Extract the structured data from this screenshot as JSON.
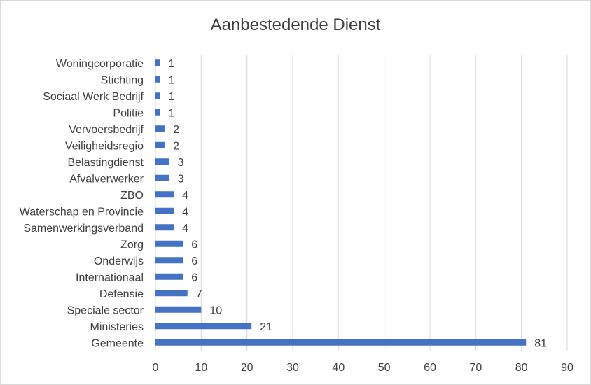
{
  "chart_data": {
    "type": "bar",
    "orientation": "horizontal",
    "title": "Aanbestedende Dienst",
    "categories": [
      "Gemeente",
      "Ministeries",
      "Speciale sector",
      "Defensie",
      "Internationaal",
      "Onderwijs",
      "Zorg",
      "Samenwerkingsverband",
      "Waterschap en Provincie",
      "ZBO",
      "Afvalverwerker",
      "Belastingdienst",
      "Veiligheidsregio",
      "Vervoersbedrijf",
      "Politie",
      "Sociaal Werk Bedrijf",
      "Stichting",
      "Woningcorporatie"
    ],
    "values": [
      81,
      21,
      10,
      7,
      6,
      6,
      6,
      4,
      4,
      4,
      3,
      3,
      2,
      2,
      1,
      1,
      1,
      1
    ],
    "xlim": [
      0,
      90
    ],
    "xticks": [
      0,
      10,
      20,
      30,
      40,
      50,
      60,
      70,
      80,
      90
    ],
    "grid": "vertical",
    "data_labels": true,
    "bar_color": "#4472c4"
  }
}
